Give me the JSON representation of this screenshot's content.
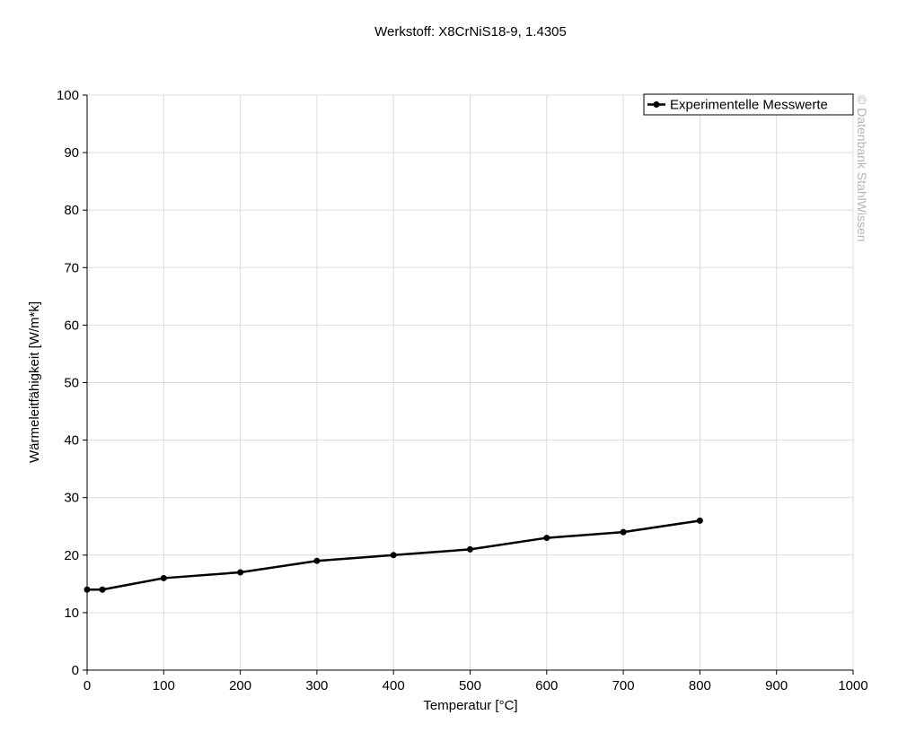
{
  "chart_data": {
    "type": "line",
    "title": "Werkstoff: X8CrNiS18-9, 1.4305",
    "xlabel": "Temperatur [°C]",
    "ylabel": "Wärmeleitfähigkeit [W/m*k]",
    "xlim": [
      0,
      1000
    ],
    "ylim": [
      0,
      100
    ],
    "x_ticks": [
      0,
      100,
      200,
      300,
      400,
      500,
      600,
      700,
      800,
      900,
      1000
    ],
    "y_ticks": [
      0,
      10,
      20,
      30,
      40,
      50,
      60,
      70,
      80,
      90,
      100
    ],
    "x_tick_labels": [
      "0",
      "100",
      "200",
      "300",
      "400",
      "500",
      "600",
      "700",
      "800",
      "900",
      "1000"
    ],
    "y_tick_labels": [
      "0",
      "10",
      "20",
      "30",
      "40",
      "50",
      "60",
      "70",
      "80",
      "90",
      "100"
    ],
    "grid": true,
    "legend_position": "top-right",
    "series": [
      {
        "name": "Experimentelle Messwerte",
        "color": "#000000",
        "marker": "circle",
        "x": [
          0,
          20,
          100,
          200,
          300,
          400,
          500,
          600,
          700,
          800
        ],
        "y": [
          14,
          14,
          16,
          17,
          19,
          20,
          21,
          23,
          24,
          26
        ]
      }
    ],
    "watermark": "© Datenbank StahlWissen"
  }
}
